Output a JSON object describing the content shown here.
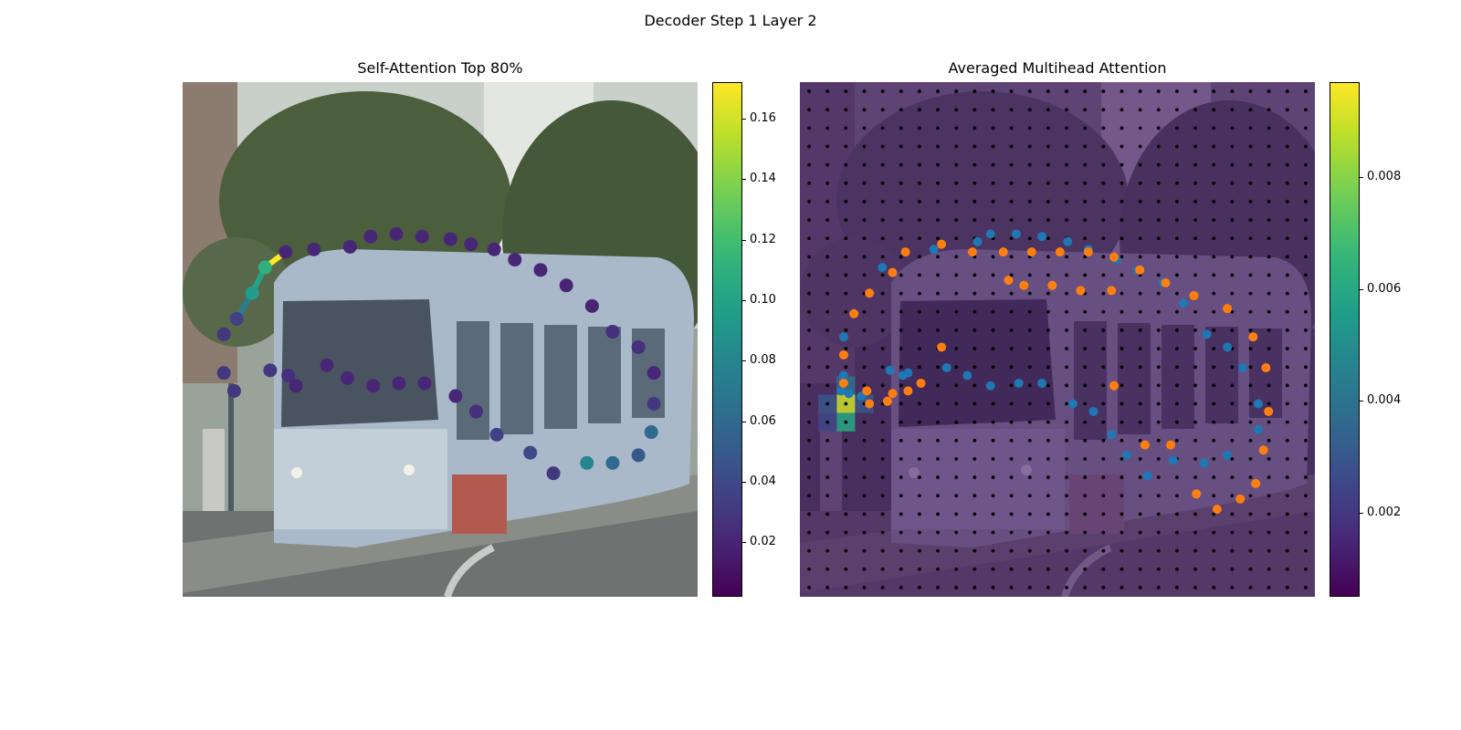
{
  "figure": {
    "suptitle": "Decoder Step 1 Layer 2"
  },
  "colors": {
    "viridis": [
      "#440154",
      "#482878",
      "#3e4989",
      "#31688e",
      "#26828e",
      "#1f9e89",
      "#35b779",
      "#6ece58",
      "#b5de2b",
      "#fde725"
    ],
    "blue_points": "#1f77b4",
    "orange_points": "#ff7f0e",
    "grid_dots": "#000000"
  },
  "chart_data": [
    {
      "type": "scatter",
      "title": "Self-Attention Top 80%",
      "background": "photo of a light-blue tram on a city street, blurred",
      "colorbar": {
        "cmap": "viridis",
        "range": [
          0.002,
          0.172
        ],
        "ticks": [
          "0.02",
          "0.04",
          "0.06",
          "0.08",
          "0.10",
          "0.12",
          "0.14",
          "0.16"
        ],
        "tick_values": [
          0.02,
          0.04,
          0.06,
          0.08,
          0.1,
          0.12,
          0.14,
          0.16
        ]
      },
      "image_extent": [
        0,
        100,
        100,
        0
      ],
      "points": [
        {
          "x": 20,
          "y": 33,
          "v": 0.02
        },
        {
          "x": 25.5,
          "y": 32.5,
          "v": 0.02
        },
        {
          "x": 32.5,
          "y": 32,
          "v": 0.02
        },
        {
          "x": 36.5,
          "y": 30,
          "v": 0.02
        },
        {
          "x": 41.5,
          "y": 29.5,
          "v": 0.02
        },
        {
          "x": 46.5,
          "y": 30,
          "v": 0.02
        },
        {
          "x": 52,
          "y": 30.5,
          "v": 0.02
        },
        {
          "x": 56,
          "y": 31.5,
          "v": 0.02
        },
        {
          "x": 60.5,
          "y": 32.5,
          "v": 0.02
        },
        {
          "x": 64.5,
          "y": 34.5,
          "v": 0.02
        },
        {
          "x": 69.5,
          "y": 36.5,
          "v": 0.02
        },
        {
          "x": 74.5,
          "y": 39.5,
          "v": 0.02
        },
        {
          "x": 79.5,
          "y": 43.5,
          "v": 0.02
        },
        {
          "x": 83.5,
          "y": 48.5,
          "v": 0.025
        },
        {
          "x": 88.5,
          "y": 51.5,
          "v": 0.025
        },
        {
          "x": 91.5,
          "y": 56.5,
          "v": 0.02
        },
        {
          "x": 91.5,
          "y": 62.5,
          "v": 0.03
        },
        {
          "x": 91,
          "y": 68,
          "v": 0.06
        },
        {
          "x": 88.5,
          "y": 72.5,
          "v": 0.05
        },
        {
          "x": 83.5,
          "y": 74,
          "v": 0.06
        },
        {
          "x": 78.5,
          "y": 74,
          "v": 0.08
        },
        {
          "x": 72,
          "y": 76,
          "v": 0.03
        },
        {
          "x": 67.5,
          "y": 72,
          "v": 0.04
        },
        {
          "x": 61,
          "y": 68.5,
          "v": 0.035
        },
        {
          "x": 57,
          "y": 64,
          "v": 0.025
        },
        {
          "x": 53,
          "y": 61,
          "v": 0.02
        },
        {
          "x": 47,
          "y": 58.5,
          "v": 0.02
        },
        {
          "x": 42,
          "y": 58.5,
          "v": 0.02
        },
        {
          "x": 37,
          "y": 59,
          "v": 0.02
        },
        {
          "x": 32,
          "y": 57.5,
          "v": 0.02
        },
        {
          "x": 28,
          "y": 55,
          "v": 0.02
        },
        {
          "x": 22,
          "y": 59,
          "v": 0.02
        },
        {
          "x": 20.5,
          "y": 57,
          "v": 0.025
        },
        {
          "x": 17,
          "y": 56,
          "v": 0.03
        },
        {
          "x": 8,
          "y": 56.5,
          "v": 0.03
        },
        {
          "x": 10,
          "y": 60,
          "v": 0.03
        },
        {
          "x": 8,
          "y": 49,
          "v": 0.03
        },
        {
          "x": 10.5,
          "y": 46,
          "v": 0.035
        },
        {
          "x": 13.5,
          "y": 41,
          "v": 0.095
        },
        {
          "x": 16,
          "y": 36,
          "v": 0.11
        }
      ],
      "lines": [
        {
          "x1": 16,
          "y1": 36,
          "x2": 20,
          "y2": 33,
          "v": 0.172
        },
        {
          "x1": 13.5,
          "y1": 41,
          "x2": 16,
          "y2": 36,
          "v": 0.1
        },
        {
          "x1": 10.5,
          "y1": 46,
          "x2": 13.5,
          "y2": 41,
          "v": 0.075
        }
      ]
    },
    {
      "type": "heatmap",
      "title": "Averaged Multihead Attention",
      "background": "same tram photo with attention heatmap overlay",
      "colorbar": {
        "cmap": "viridis",
        "range": [
          0.0005,
          0.0097
        ],
        "ticks": [
          "0.002",
          "0.004",
          "0.006",
          "0.008"
        ],
        "tick_values": [
          0.002,
          0.004,
          0.006,
          0.008
        ]
      },
      "grid": {
        "rows": 28,
        "cols": 28
      },
      "hot_cells": [
        {
          "col": 2,
          "row": 17,
          "v": 0.009
        },
        {
          "col": 2,
          "row": 18,
          "v": 0.006
        },
        {
          "col": 1,
          "row": 17,
          "v": 0.003
        },
        {
          "col": 2,
          "row": 16,
          "v": 0.004
        },
        {
          "col": 3,
          "row": 17,
          "v": 0.003
        },
        {
          "col": 1,
          "row": 18,
          "v": 0.0025
        }
      ],
      "blue_points": [
        [
          8,
          60
        ],
        [
          8.5,
          57
        ],
        [
          9.5,
          60.5
        ],
        [
          8.5,
          49.5
        ],
        [
          16,
          36
        ],
        [
          26,
          32.5
        ],
        [
          34.5,
          31
        ],
        [
          37,
          29.5
        ],
        [
          42,
          29.5
        ],
        [
          47,
          30
        ],
        [
          52,
          31
        ],
        [
          56,
          32.5
        ],
        [
          61.5,
          34.5
        ],
        [
          65.5,
          36.5
        ],
        [
          70.5,
          39
        ],
        [
          74.5,
          43
        ],
        [
          79,
          49
        ],
        [
          83,
          51.5
        ],
        [
          86,
          55.5
        ],
        [
          89,
          62.5
        ],
        [
          89,
          67.5
        ],
        [
          83,
          72.5
        ],
        [
          78.5,
          74
        ],
        [
          72.5,
          73.5
        ],
        [
          67.5,
          76.5
        ],
        [
          63.5,
          72.5
        ],
        [
          60.5,
          68.5
        ],
        [
          57,
          64
        ],
        [
          53,
          62.5
        ],
        [
          47,
          58.5
        ],
        [
          42.5,
          58.5
        ],
        [
          37,
          59
        ],
        [
          32.5,
          57
        ],
        [
          28.5,
          55.5
        ],
        [
          21,
          56.5
        ],
        [
          20,
          57
        ],
        [
          17.5,
          56
        ],
        [
          12,
          61
        ]
      ],
      "orange_points": [
        [
          8.5,
          53
        ],
        [
          8.5,
          58.5
        ],
        [
          10.5,
          45
        ],
        [
          13.5,
          41
        ],
        [
          18,
          37
        ],
        [
          20.5,
          33
        ],
        [
          27.5,
          31.5
        ],
        [
          33.5,
          33
        ],
        [
          39.5,
          33
        ],
        [
          45,
          33
        ],
        [
          50.5,
          33
        ],
        [
          56,
          33
        ],
        [
          61,
          34
        ],
        [
          66,
          36.5
        ],
        [
          71,
          39
        ],
        [
          76.5,
          41.5
        ],
        [
          83,
          44
        ],
        [
          88,
          49.5
        ],
        [
          90.5,
          55.5
        ],
        [
          91,
          64
        ],
        [
          90,
          71.5
        ],
        [
          88.5,
          78
        ],
        [
          85.5,
          81
        ],
        [
          81,
          83
        ],
        [
          77,
          80
        ],
        [
          72,
          70.5
        ],
        [
          67,
          70.5
        ],
        [
          61,
          59
        ],
        [
          60.5,
          40.5
        ],
        [
          54.5,
          40.5
        ],
        [
          49,
          39.5
        ],
        [
          43.5,
          39.5
        ],
        [
          40.5,
          38.5
        ],
        [
          27.5,
          51.5
        ],
        [
          23.5,
          58.5
        ],
        [
          21,
          60
        ],
        [
          18,
          60.5
        ],
        [
          17,
          62
        ],
        [
          13.5,
          62.5
        ],
        [
          13,
          60
        ]
      ]
    }
  ]
}
